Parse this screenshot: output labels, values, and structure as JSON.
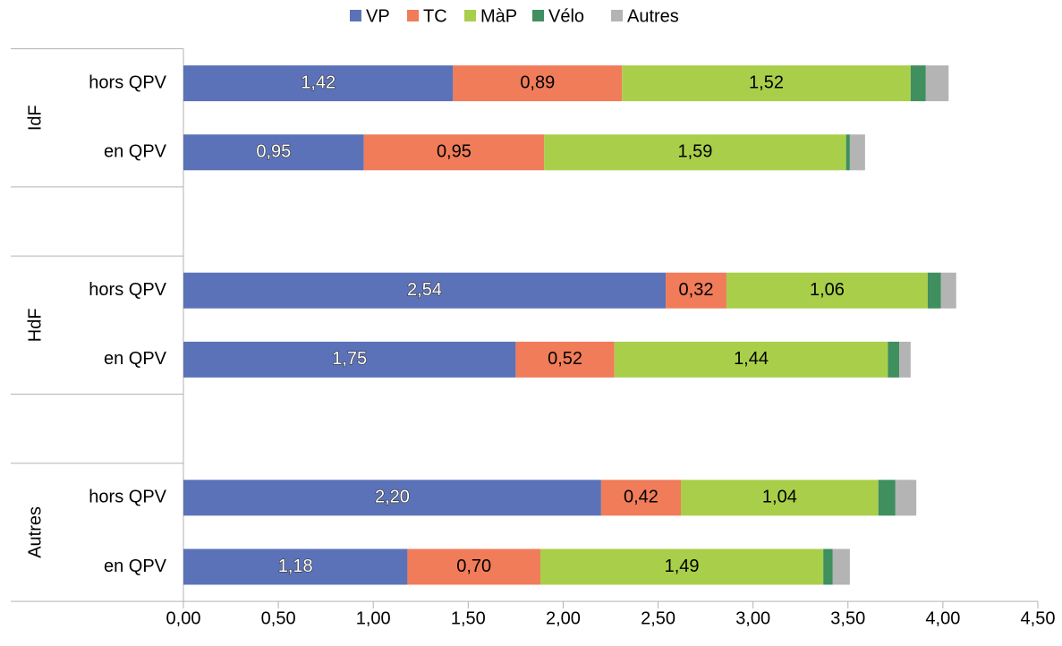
{
  "chart_data": {
    "type": "stacked-barh",
    "groups": [
      "IdF",
      "HdF",
      "Autres"
    ],
    "categories": [
      "hors QPV",
      "en QPV",
      "hors QPV",
      "en QPV",
      "hors QPV",
      "en QPV"
    ],
    "series": [
      {
        "name": "VP",
        "color": "#5b72b8",
        "values": [
          1.42,
          0.95,
          2.54,
          1.75,
          2.2,
          1.18
        ],
        "value_labels": [
          "1,42",
          "0,95",
          "2,54",
          "1,75",
          "2,20",
          "1,18"
        ]
      },
      {
        "name": "TC",
        "color": "#f07c5a",
        "values": [
          0.89,
          0.95,
          0.32,
          0.52,
          0.42,
          0.7
        ],
        "value_labels": [
          "0,89",
          "0,95",
          "0,32",
          "0,52",
          "0,42",
          "0,70"
        ]
      },
      {
        "name": "MàP",
        "color": "#a9cf4a",
        "values": [
          1.52,
          1.59,
          1.06,
          1.44,
          1.04,
          1.49
        ],
        "value_labels": [
          "1,52",
          "1,59",
          "1,06",
          "1,44",
          "1,04",
          "1,49"
        ]
      },
      {
        "name": "Vélo",
        "color": "#3f8f5f",
        "values": [
          0.08,
          0.02,
          0.07,
          0.06,
          0.09,
          0.05
        ]
      },
      {
        "name": "Autres",
        "color": "#b4b4b4",
        "values": [
          0.12,
          0.08,
          0.08,
          0.06,
          0.11,
          0.09
        ]
      }
    ],
    "xlim": [
      0,
      4.5
    ],
    "xticks": [
      {
        "value": 0,
        "label": "0,00"
      },
      {
        "value": 0.5,
        "label": "0,50"
      },
      {
        "value": 1,
        "label": "1,00"
      },
      {
        "value": 1.5,
        "label": "1,50"
      },
      {
        "value": 2,
        "label": "2,00"
      },
      {
        "value": 2.5,
        "label": "2,50"
      },
      {
        "value": 3,
        "label": "3,00"
      },
      {
        "value": 3.5,
        "label": "3,50"
      },
      {
        "value": 4,
        "label": "4,00"
      },
      {
        "value": 4.5,
        "label": "4,50"
      }
    ],
    "legend": "top"
  }
}
